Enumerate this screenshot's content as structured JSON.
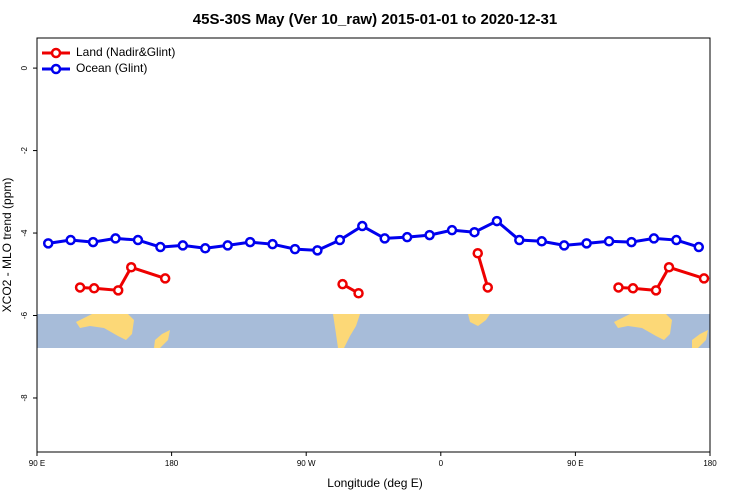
{
  "chart_data": {
    "type": "line",
    "title": "45S-30S May (Ver 10_raw)   2015-01-01 to 2020-12-31",
    "x_label": "Longitude (deg E)",
    "y_label": "XCO2 - MLO trend (ppm)",
    "xlim": [
      90,
      540
    ],
    "xticks": [
      {
        "value": 90,
        "label": "90 E"
      },
      180,
      {
        "value": 270,
        "label": "90 W"
      },
      {
        "value": 360,
        "label": "0"
      },
      {
        "value": 450,
        "label": "90 E"
      },
      {
        "value": 540,
        "label": "180"
      }
    ],
    "ylim": [
      -9.31,
      0.73
    ],
    "yticks": [
      0,
      -2,
      -4,
      -6,
      -8
    ],
    "legend": "top-left",
    "series": [
      {
        "name": "Land (Nadir&Glint)",
        "color": "#ee0000",
        "x": [
          118.8,
          128.2,
          144.3,
          153,
          175.7,
          null,
          294.3,
          305,
          null,
          384.7,
          391.4,
          null,
          478.8,
          488.5,
          503.9,
          512.6,
          536
        ],
        "values": [
          -5.32,
          -5.34,
          -5.39,
          -4.83,
          -5.1,
          null,
          -5.24,
          -5.46,
          null,
          -4.49,
          -5.32,
          null,
          -5.32,
          -5.34,
          -5.39,
          -4.83,
          -5.1
        ]
      },
      {
        "name": "Ocean (Glint)",
        "color": "#0000ee",
        "x": [
          97.5,
          112.5,
          127.5,
          142.5,
          157.5,
          172.5,
          187.5,
          202.5,
          217.5,
          232.5,
          247.5,
          262.5,
          277.5,
          292.5,
          307.5,
          322.5,
          337.5,
          352.5,
          367.5,
          382.5,
          397.5,
          412.5,
          427.5,
          442.5,
          457.5,
          472.5,
          487.5,
          502.5,
          517.5,
          532.5
        ],
        "values": [
          -4.25,
          -4.17,
          -4.22,
          -4.13,
          -4.17,
          -4.34,
          -4.3,
          -4.37,
          -4.3,
          -4.22,
          -4.27,
          -4.39,
          -4.42,
          -4.17,
          -3.83,
          -4.13,
          -4.1,
          -4.05,
          -3.93,
          -3.98,
          -3.71,
          -4.17,
          -4.2,
          -4.3,
          -4.25,
          -4.2,
          -4.22,
          -4.13,
          -4.17,
          -4.34
        ]
      }
    ]
  }
}
